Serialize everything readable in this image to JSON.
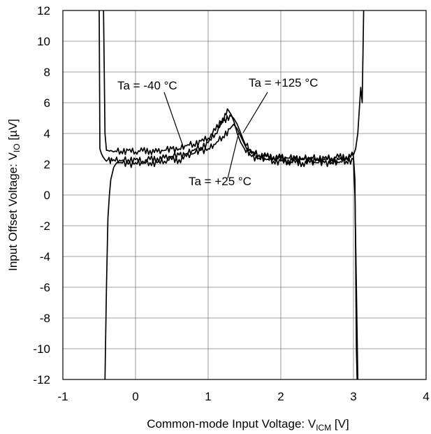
{
  "chart_data": {
    "type": "line",
    "xlabel": {
      "main": "Common-mode Input Voltage:  V",
      "sub": "ICM",
      "unit": " [V]"
    },
    "ylabel": {
      "main": "Input Offset Voltage:  V",
      "sub": "IO",
      "unit": " [µV]"
    },
    "xlim": [
      -1,
      4
    ],
    "ylim": [
      -12,
      12
    ],
    "xticks": [
      "-1",
      "0",
      "1",
      "2",
      "3",
      "4"
    ],
    "yticks": [
      "12",
      "10",
      "8",
      "6",
      "4",
      "2",
      "0",
      "-2",
      "-4",
      "-6",
      "-8",
      "-10",
      "-12"
    ],
    "grid": true,
    "annotations": [
      "Ta = -40 °C",
      "Ta = +125 °C",
      "Ta = +25 °C"
    ],
    "series": [
      {
        "name": "Ta = -40 °C",
        "x": [
          -0.44,
          -0.42,
          -0.4,
          -0.38,
          -0.36,
          -0.34,
          -0.3,
          -0.2,
          -0.1,
          0.0,
          0.1,
          0.2,
          0.3,
          0.4,
          0.5,
          0.6,
          0.7,
          0.8,
          0.9,
          1.0,
          1.1,
          1.2,
          1.28,
          1.32,
          1.36,
          1.4,
          1.45,
          1.5,
          1.6,
          1.7,
          1.8,
          1.9,
          2.0,
          2.1,
          2.2,
          2.3,
          2.4,
          2.5,
          2.6,
          2.7,
          2.8,
          2.9,
          3.0,
          3.03,
          3.06,
          3.08,
          3.1,
          3.12,
          3.14
        ],
        "y": [
          12,
          4,
          2.9,
          2.9,
          2.85,
          2.9,
          2.8,
          2.85,
          2.9,
          2.8,
          2.85,
          2.9,
          2.8,
          2.9,
          3.0,
          3.0,
          3.2,
          3.3,
          3.5,
          3.7,
          4.2,
          5.0,
          5.5,
          5.2,
          4.7,
          4.0,
          3.4,
          3.0,
          2.7,
          2.6,
          2.5,
          2.5,
          2.45,
          2.4,
          2.4,
          2.4,
          2.4,
          2.4,
          2.4,
          2.4,
          2.45,
          2.5,
          2.6,
          3.0,
          4.0,
          5.5,
          7.0,
          6.0,
          12
        ]
      },
      {
        "name": "Ta = +125 °C",
        "x": [
          -0.5,
          -0.49,
          -0.47,
          -0.45,
          -0.42,
          -0.4,
          -0.38,
          -0.3,
          -0.2,
          -0.1,
          0.0,
          0.1,
          0.2,
          0.3,
          0.4,
          0.5,
          0.6,
          0.7,
          0.8,
          0.9,
          1.0,
          1.1,
          1.2,
          1.3,
          1.35,
          1.4,
          1.45,
          1.5,
          1.6,
          1.7,
          1.8,
          1.9,
          2.0,
          2.1,
          2.2,
          2.3,
          2.4,
          2.5,
          2.6,
          2.7,
          2.8,
          2.9,
          3.0,
          3.02,
          3.03,
          3.04,
          3.05
        ],
        "y": [
          12,
          3.0,
          2.7,
          2.5,
          2.3,
          2.2,
          2.3,
          2.3,
          2.2,
          2.3,
          2.3,
          2.2,
          2.3,
          2.4,
          2.4,
          2.5,
          2.6,
          2.7,
          2.9,
          3.1,
          3.4,
          4.0,
          4.7,
          5.2,
          5.0,
          4.6,
          4.0,
          3.4,
          2.8,
          2.6,
          2.5,
          2.4,
          2.3,
          2.3,
          2.3,
          2.3,
          2.3,
          2.3,
          2.3,
          2.3,
          2.3,
          2.4,
          2.5,
          1.0,
          -4.0,
          -10.0,
          -12
        ]
      },
      {
        "name": "Ta = +25 °C",
        "x": [
          -0.42,
          -0.4,
          -0.38,
          -0.36,
          -0.34,
          -0.3,
          -0.26,
          -0.2,
          -0.1,
          0.0,
          0.1,
          0.2,
          0.3,
          0.4,
          0.5,
          0.6,
          0.7,
          0.8,
          0.9,
          1.0,
          1.1,
          1.2,
          1.3,
          1.35,
          1.4,
          1.45,
          1.5,
          1.55,
          1.6,
          1.7,
          1.8,
          1.9,
          2.0,
          2.1,
          2.2,
          2.3,
          2.4,
          2.5,
          2.6,
          2.7,
          2.8,
          2.9,
          3.0,
          3.02,
          3.04,
          3.06
        ],
        "y": [
          -12,
          -6.0,
          -1.5,
          0.0,
          1.0,
          1.8,
          2.1,
          2.1,
          2.0,
          2.1,
          2.05,
          2.1,
          2.1,
          2.2,
          2.3,
          2.3,
          2.5,
          2.7,
          2.9,
          3.0,
          3.3,
          3.8,
          4.3,
          4.6,
          4.3,
          3.8,
          3.3,
          2.8,
          2.5,
          2.4,
          2.3,
          2.2,
          2.2,
          2.1,
          2.1,
          2.1,
          2.1,
          2.1,
          2.1,
          2.1,
          2.1,
          2.2,
          2.3,
          0.0,
          -6.0,
          -12
        ]
      }
    ]
  }
}
